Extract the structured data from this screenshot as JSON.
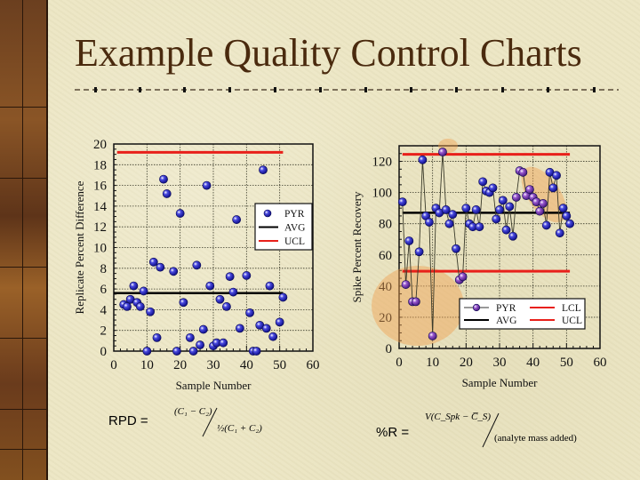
{
  "slide": {
    "title": "Example Quality Control Charts",
    "accent_color": "#4a2a0e",
    "background_color": "#ece6c4"
  },
  "formulas": {
    "rpd": {
      "label": "RPD =",
      "numerator": "(C₁ − C₂)",
      "denominator": "½(C₁ + C₂)"
    },
    "recovery": {
      "label": "%R =",
      "numerator": "V(C_Spk − C̅_S)",
      "denominator": "(analyte mass added)"
    }
  },
  "chart_data": [
    {
      "type": "scatter",
      "title": "",
      "xlabel": "Sample Number",
      "ylabel": "Replicate Percent Difference",
      "xlim": [
        0,
        60
      ],
      "ylim": [
        0,
        20
      ],
      "xticks": [
        0,
        10,
        20,
        30,
        40,
        50,
        60
      ],
      "yticks": [
        0,
        2,
        4,
        6,
        8,
        10,
        12,
        14,
        16,
        18,
        20
      ],
      "grid": true,
      "legend_position": "right-middle",
      "legend": [
        "PYR",
        "AVG",
        "UCL"
      ],
      "series": [
        {
          "name": "PYR",
          "kind": "scatter",
          "color": "#1a1ab0",
          "x": [
            3,
            4,
            5,
            6,
            7,
            8,
            9,
            10,
            11,
            12,
            13,
            14,
            15,
            16,
            18,
            19,
            20,
            21,
            23,
            24,
            25,
            26,
            27,
            28,
            29,
            30,
            31,
            32,
            33,
            34,
            35,
            36,
            37,
            38,
            40,
            41,
            42,
            43,
            44,
            45,
            46,
            47,
            48,
            50,
            51
          ],
          "y": [
            4.5,
            4.3,
            5.0,
            6.3,
            4.7,
            4.3,
            5.8,
            0,
            3.8,
            8.6,
            1.3,
            8.1,
            16.6,
            15.2,
            7.7,
            0,
            13.3,
            4.7,
            1.3,
            0,
            8.3,
            0.6,
            2.1,
            16.0,
            6.3,
            0.5,
            0.8,
            5.0,
            0.8,
            4.3,
            7.2,
            5.7,
            12.7,
            2.2,
            7.3,
            3.7,
            0,
            0,
            2.5,
            17.5,
            2.2,
            6.3,
            1.4,
            2.8,
            5.2
          ]
        },
        {
          "name": "AVG",
          "kind": "hline",
          "color": "#000000",
          "y": 5.6,
          "x_range": [
            0,
            51
          ]
        },
        {
          "name": "UCL",
          "kind": "hline",
          "color": "#e8201a",
          "y": 19.2,
          "x_range": [
            1,
            51
          ]
        }
      ]
    },
    {
      "type": "line",
      "title": "",
      "xlabel": "Sample Number",
      "ylabel": "Spike Percent Recovery",
      "xlim": [
        0,
        60
      ],
      "ylim": [
        0,
        130
      ],
      "xticks": [
        0,
        10,
        20,
        30,
        40,
        50,
        60
      ],
      "yticks": [
        0,
        20,
        40,
        60,
        80,
        100,
        120
      ],
      "grid": true,
      "legend_position": "lower-right",
      "legend": [
        "PYR",
        "AVG",
        "LCL",
        "UCL"
      ],
      "series": [
        {
          "name": "PYR",
          "kind": "line-markers",
          "color": "#1a1ab0",
          "x": [
            1,
            2,
            3,
            4,
            5,
            6,
            7,
            8,
            9,
            10,
            11,
            12,
            13,
            14,
            15,
            16,
            17,
            18,
            19,
            20,
            21,
            22,
            23,
            24,
            25,
            26,
            27,
            28,
            29,
            30,
            31,
            32,
            33,
            34,
            35,
            36,
            37,
            38,
            39,
            40,
            41,
            42,
            43,
            44,
            45,
            46,
            47,
            48,
            49,
            50,
            51
          ],
          "y": [
            94,
            41,
            69,
            30,
            30,
            62,
            121,
            85,
            81,
            8,
            90,
            87,
            126,
            89,
            80,
            86,
            64,
            44,
            46,
            90,
            80,
            78,
            89,
            78,
            107,
            101,
            100,
            103,
            83,
            89,
            95,
            76,
            91,
            72,
            97,
            114,
            113,
            98,
            102,
            97,
            94,
            88,
            93,
            79,
            113,
            103,
            111,
            74,
            90,
            85,
            80
          ]
        },
        {
          "name": "AVG",
          "kind": "hline",
          "color": "#000000",
          "y": 87,
          "x_range": [
            1,
            51
          ]
        },
        {
          "name": "LCL",
          "kind": "hline",
          "color": "#e8201a",
          "y": 49.5,
          "x_range": [
            1,
            51
          ]
        },
        {
          "name": "UCL",
          "kind": "hline",
          "color": "#e8201a",
          "y": 124.5,
          "x_range": [
            1,
            51
          ]
        }
      ]
    }
  ]
}
